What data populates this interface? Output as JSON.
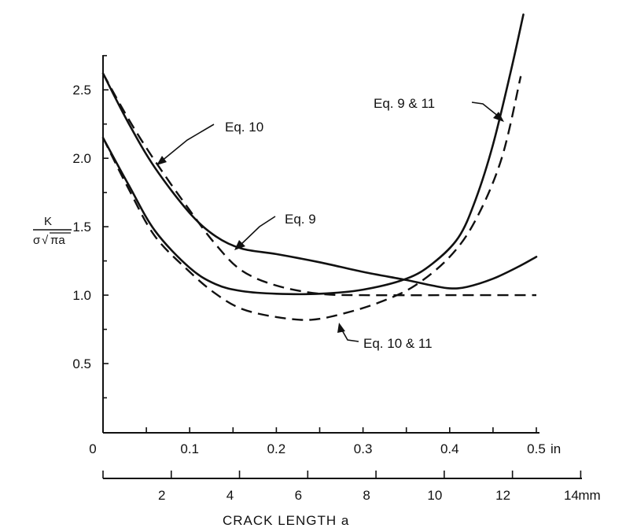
{
  "chart_data": {
    "type": "line",
    "ylabel": {
      "numerator": "K",
      "sigma": "σ",
      "sqrt_symbol": "√",
      "radicand": "πa"
    },
    "xlabel": "CRACK LENGTH a",
    "x_units_primary": "in",
    "x_units_secondary": "mm",
    "xlim": [
      0,
      0.5
    ],
    "ylim": [
      0,
      2.8
    ],
    "x_ticks": [
      "0",
      "0.1",
      "0.2",
      "0.3",
      "0.4",
      "0.5"
    ],
    "x_tick_values": [
      0,
      0.1,
      0.2,
      0.3,
      0.4,
      0.5
    ],
    "y_ticks": [
      "0.5",
      "1.0",
      "1.5",
      "2.0",
      "2.5"
    ],
    "y_tick_values": [
      0.5,
      1.0,
      1.5,
      2.0,
      2.5
    ],
    "mm_ticks": [
      "2",
      "4",
      "6",
      "8",
      "10",
      "12",
      "14"
    ],
    "mm_tick_values": [
      2,
      4,
      6,
      8,
      10,
      12,
      14
    ],
    "origin_label": "0",
    "grid": false,
    "series": [
      {
        "style": "solid",
        "annotation": "Eq. 9",
        "points": [
          [
            0,
            2.62
          ],
          [
            0.03,
            2.25
          ],
          [
            0.06,
            1.93
          ],
          [
            0.1,
            1.6
          ],
          [
            0.13,
            1.43
          ],
          [
            0.16,
            1.34
          ],
          [
            0.2,
            1.3
          ],
          [
            0.25,
            1.24
          ],
          [
            0.3,
            1.17
          ],
          [
            0.35,
            1.11
          ],
          [
            0.38,
            1.07
          ],
          [
            0.4,
            1.05
          ],
          [
            0.42,
            1.06
          ],
          [
            0.45,
            1.12
          ],
          [
            0.48,
            1.21
          ],
          [
            0.5,
            1.28
          ]
        ]
      },
      {
        "style": "dashed",
        "annotation": "Eq. 10",
        "points": [
          [
            0,
            2.62
          ],
          [
            0.03,
            2.28
          ],
          [
            0.06,
            1.98
          ],
          [
            0.1,
            1.62
          ],
          [
            0.13,
            1.37
          ],
          [
            0.16,
            1.18
          ],
          [
            0.2,
            1.07
          ],
          [
            0.25,
            1.01
          ],
          [
            0.3,
            1.0
          ],
          [
            0.4,
            1.0
          ],
          [
            0.5,
            1.0
          ]
        ]
      },
      {
        "style": "solid",
        "annotation": "Eq. 9 & 11",
        "points": [
          [
            0,
            2.15
          ],
          [
            0.03,
            1.8
          ],
          [
            0.06,
            1.47
          ],
          [
            0.1,
            1.2
          ],
          [
            0.13,
            1.08
          ],
          [
            0.16,
            1.03
          ],
          [
            0.2,
            1.01
          ],
          [
            0.25,
            1.01
          ],
          [
            0.3,
            1.04
          ],
          [
            0.35,
            1.12
          ],
          [
            0.38,
            1.23
          ],
          [
            0.41,
            1.42
          ],
          [
            0.43,
            1.7
          ],
          [
            0.45,
            2.1
          ],
          [
            0.47,
            2.62
          ],
          [
            0.485,
            3.05
          ]
        ]
      },
      {
        "style": "dashed",
        "annotation": "Eq. 10 & 11",
        "points": [
          [
            0,
            2.15
          ],
          [
            0.03,
            1.77
          ],
          [
            0.06,
            1.43
          ],
          [
            0.1,
            1.17
          ],
          [
            0.13,
            1.01
          ],
          [
            0.16,
            0.9
          ],
          [
            0.2,
            0.84
          ],
          [
            0.24,
            0.82
          ],
          [
            0.28,
            0.87
          ],
          [
            0.32,
            0.95
          ],
          [
            0.36,
            1.07
          ],
          [
            0.4,
            1.28
          ],
          [
            0.43,
            1.55
          ],
          [
            0.46,
            2.0
          ],
          [
            0.482,
            2.6
          ]
        ]
      }
    ]
  }
}
